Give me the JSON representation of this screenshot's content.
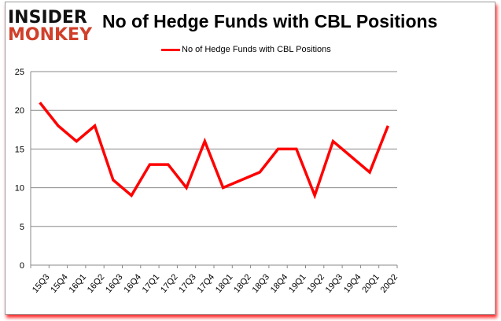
{
  "logo": {
    "line1": "INSIDER",
    "line2": "MONKEY"
  },
  "chart_data": {
    "type": "line",
    "title": "No of Hedge Funds with CBL Positions",
    "categories": [
      "15Q3",
      "15Q4",
      "16Q1",
      "16Q2",
      "16Q3",
      "16Q4",
      "17Q1",
      "17Q2",
      "17Q3",
      "17Q4",
      "18Q1",
      "18Q2",
      "18Q3",
      "18Q4",
      "19Q1",
      "19Q2",
      "19Q3",
      "19Q4",
      "20Q1",
      "20Q2"
    ],
    "series": [
      {
        "name": "No of Hedge Funds with CBL Positions",
        "color": "#ff0000",
        "values": [
          21,
          18,
          16,
          18,
          11,
          9,
          13,
          13,
          10,
          16,
          10,
          11,
          12,
          15,
          15,
          9,
          16,
          14,
          12,
          18
        ]
      }
    ],
    "yticks": [
      0,
      5,
      10,
      15,
      20,
      25
    ],
    "ylim": [
      0,
      25
    ],
    "xlabel": "",
    "ylabel": "",
    "grid": true,
    "legend": "top-center"
  }
}
